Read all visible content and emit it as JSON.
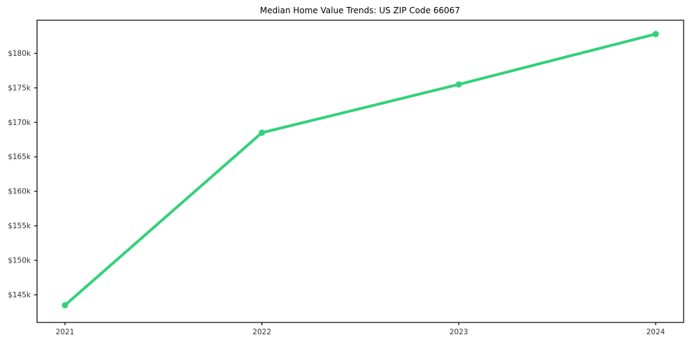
{
  "figure": {
    "background": "#ffffff"
  },
  "chart_data": {
    "type": "line",
    "title": "Median Home Value Trends: US ZIP Code 66067",
    "x": [
      2021,
      2022,
      2023,
      2024
    ],
    "x_tick_labels": [
      "2021",
      "2022",
      "2023",
      "2024"
    ],
    "series": [
      {
        "name": "Median Home Value",
        "values": [
          143500,
          168500,
          175500,
          182800
        ],
        "color": "#34d07c"
      }
    ],
    "xlabel": "",
    "ylabel": "",
    "ylim_k": [
      141.0,
      184.8
    ],
    "y_ticks_k": [
      145,
      150,
      155,
      160,
      165,
      170,
      175,
      180
    ],
    "y_tick_labels": [
      "$145k",
      "$150k",
      "$155k",
      "$160k",
      "$165k",
      "$170k",
      "$175k",
      "$180k"
    ],
    "grid": false,
    "legend": "none",
    "marker": "circle",
    "line_width": 4,
    "marker_radius": 4.5,
    "axis_color": "#000000",
    "tick_label_color": "#333333",
    "plot_background": "#ffffff"
  }
}
